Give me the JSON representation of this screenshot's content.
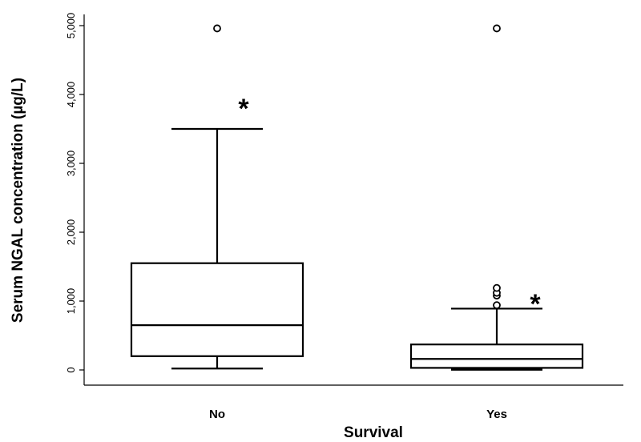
{
  "chart_data": {
    "type": "box",
    "xlabel": "Survival",
    "ylabel": "Serum NGAL concentration (µg/L)",
    "ylim": [
      0,
      5000
    ],
    "yticks": [
      0,
      1000,
      2000,
      3000,
      4000,
      5000
    ],
    "ytick_labels": [
      "0",
      "1,000",
      "2,000",
      "3,000",
      "4,000",
      "5,000"
    ],
    "categories": [
      "No",
      "Yes"
    ],
    "boxes": [
      {
        "category": "No",
        "whisker_low": 20,
        "q1": 200,
        "median": 650,
        "q3": 1550,
        "whisker_high": 3500,
        "outliers": [
          4960
        ],
        "annotation": "*"
      },
      {
        "category": "Yes",
        "whisker_low": 10,
        "q1": 30,
        "median": 160,
        "q3": 370,
        "whisker_high": 890,
        "outliers": [
          940,
          1080,
          1120,
          1190,
          4960
        ],
        "annotation": "*"
      }
    ],
    "grid": false,
    "legend": "none"
  }
}
